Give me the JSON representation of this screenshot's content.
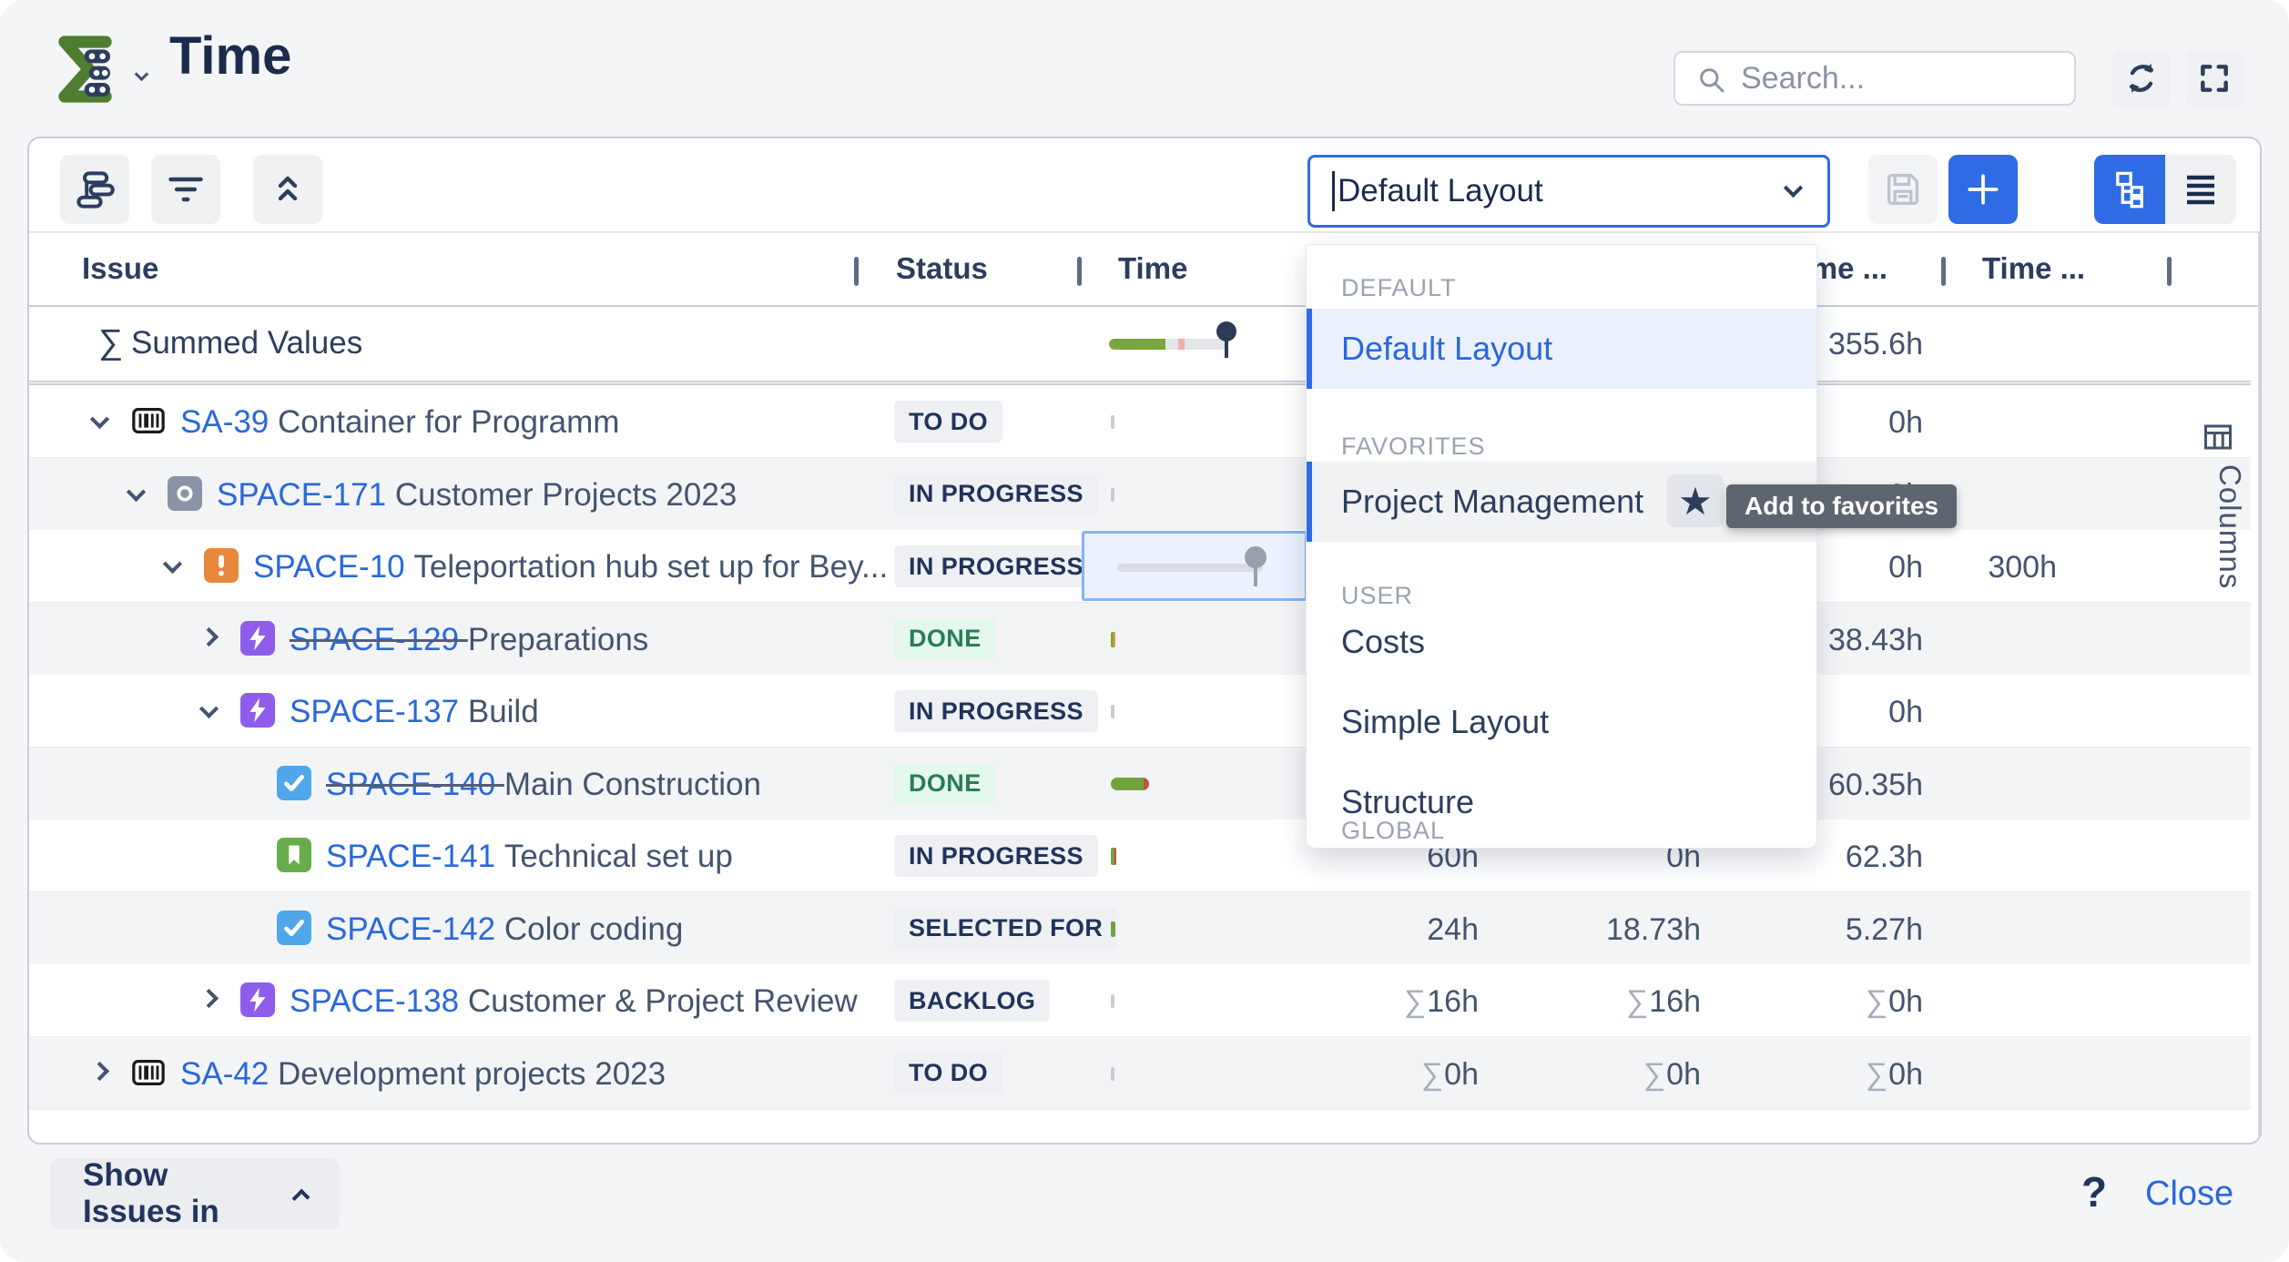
{
  "app": {
    "title": "Time"
  },
  "header": {
    "search_placeholder": "Search...",
    "icons": {
      "refresh": "refresh-icon",
      "fullscreen": "fullscreen-icon"
    }
  },
  "toolbar": {
    "layout_select_value": "Default Layout",
    "buttons": {
      "group": "group-by",
      "filter": "filter",
      "collapse": "collapse-all",
      "save": "save",
      "add": "add",
      "tree_view": "tree-view",
      "list_view": "list-view"
    }
  },
  "layout_menu": {
    "sections": [
      {
        "label": "DEFAULT",
        "items": [
          {
            "label": "Default Layout",
            "state": "selected"
          }
        ]
      },
      {
        "label": "FAVORITES",
        "items": [
          {
            "label": "Project Management",
            "state": "hovered",
            "has_actions": true
          }
        ]
      },
      {
        "label": "USER",
        "items": [
          {
            "label": "Costs"
          },
          {
            "label": "Simple Layout"
          },
          {
            "label": "Structure"
          }
        ]
      },
      {
        "label": "GLOBAL",
        "items": []
      }
    ],
    "tooltip": "Add to favorites",
    "star": "★"
  },
  "table": {
    "columns": [
      {
        "label": "Issue"
      },
      {
        "label": "Status"
      },
      {
        "label": "Time"
      },
      {
        "label": "Time ..."
      },
      {
        "label": "Time ..."
      }
    ],
    "summed_row": {
      "sigma": "∑",
      "label": "Summed Values",
      "total": "355.6h"
    },
    "rows": [
      {
        "indent": 0,
        "expander": "down",
        "icon": "container",
        "key": "SA-39",
        "struck": false,
        "summary": "Container for Programm",
        "status": "TO DO",
        "status_kind": "gray",
        "time_visual": "tick-gray",
        "values": [
          "",
          "",
          "0h",
          ""
        ]
      },
      {
        "indent": 1,
        "expander": "down",
        "icon": "component",
        "key": "SPACE-171",
        "struck": false,
        "summary": "Customer Projects 2023",
        "status": "IN PROGRESS",
        "status_kind": "gray",
        "time_visual": "tick-gray",
        "values": [
          "",
          "",
          "0h",
          ""
        ]
      },
      {
        "indent": 2,
        "expander": "down",
        "icon": "alert",
        "key": "SPACE-10",
        "struck": false,
        "summary": "Teleportation hub set up for Bey...",
        "status": "IN PROGRESS",
        "status_kind": "gray",
        "time_visual": "slider-selected",
        "values": [
          "",
          "",
          "0h",
          "300h"
        ]
      },
      {
        "indent": 3,
        "expander": "right",
        "icon": "story",
        "key": "SPACE-129",
        "struck": true,
        "summary": "Preparations",
        "status": "DONE",
        "status_kind": "green",
        "time_visual": "tick-mixed",
        "values": [
          "",
          "",
          "38.43h",
          ""
        ]
      },
      {
        "indent": 3,
        "expander": "down",
        "icon": "story",
        "key": "SPACE-137",
        "struck": false,
        "summary": "Build",
        "status": "IN PROGRESS",
        "status_kind": "gray",
        "time_visual": "tick-gray",
        "values": [
          "",
          "",
          "0h",
          ""
        ]
      },
      {
        "indent": 4,
        "expander": null,
        "icon": "task",
        "key": "SPACE-140",
        "struck": true,
        "summary": "Main Construction",
        "status": "DONE",
        "status_kind": "green",
        "time_visual": "pill-green",
        "values": [
          "",
          "",
          "60.35h",
          ""
        ]
      },
      {
        "indent": 4,
        "expander": null,
        "icon": "bookmark",
        "key": "SPACE-141",
        "struck": false,
        "summary": "Technical set up",
        "status": "IN PROGRESS",
        "status_kind": "gray",
        "time_visual": "tick-green-tall",
        "values": [
          "60h",
          "0h",
          "62.3h",
          ""
        ]
      },
      {
        "indent": 4,
        "expander": null,
        "icon": "task",
        "key": "SPACE-142",
        "struck": false,
        "summary": "Color coding",
        "status": "SELECTED FOR",
        "status_kind": "gray",
        "time_visual": "tick-green",
        "values": [
          "24h",
          "18.73h",
          "5.27h",
          ""
        ]
      },
      {
        "indent": 3,
        "expander": "right",
        "icon": "story",
        "key": "SPACE-138",
        "struck": false,
        "summary": "Customer & Project Review",
        "status": "BACKLOG",
        "status_kind": "gray",
        "time_visual": "tick-gray",
        "values": [
          "∑16h",
          "∑16h",
          "∑0h",
          ""
        ]
      },
      {
        "indent": 0,
        "expander": "right",
        "icon": "container",
        "key": "SA-42",
        "struck": false,
        "summary": "Development projects 2023",
        "status": "TO DO",
        "status_kind": "gray",
        "time_visual": "tick-gray",
        "values": [
          "∑0h",
          "∑0h",
          "∑0h",
          ""
        ]
      }
    ]
  },
  "columns_sidebar": {
    "label": "Columns"
  },
  "footer": {
    "show_issues_label": "Show Issues in",
    "help_label": "?",
    "close_label": "Close"
  },
  "colors": {
    "accent_blue": "#2E6BE5",
    "link_blue": "#2968DB",
    "logo_green": "#4E7D31",
    "navy": "#2C3E5D",
    "done_green": "#2A7D54",
    "bar_green": "#72A33C",
    "bar_red": "#C05040",
    "alert_orange": "#E8883C",
    "story_purple": "#8E5DEB",
    "task_blue": "#4FA7EA",
    "bookmark_green": "#67AD4B"
  }
}
